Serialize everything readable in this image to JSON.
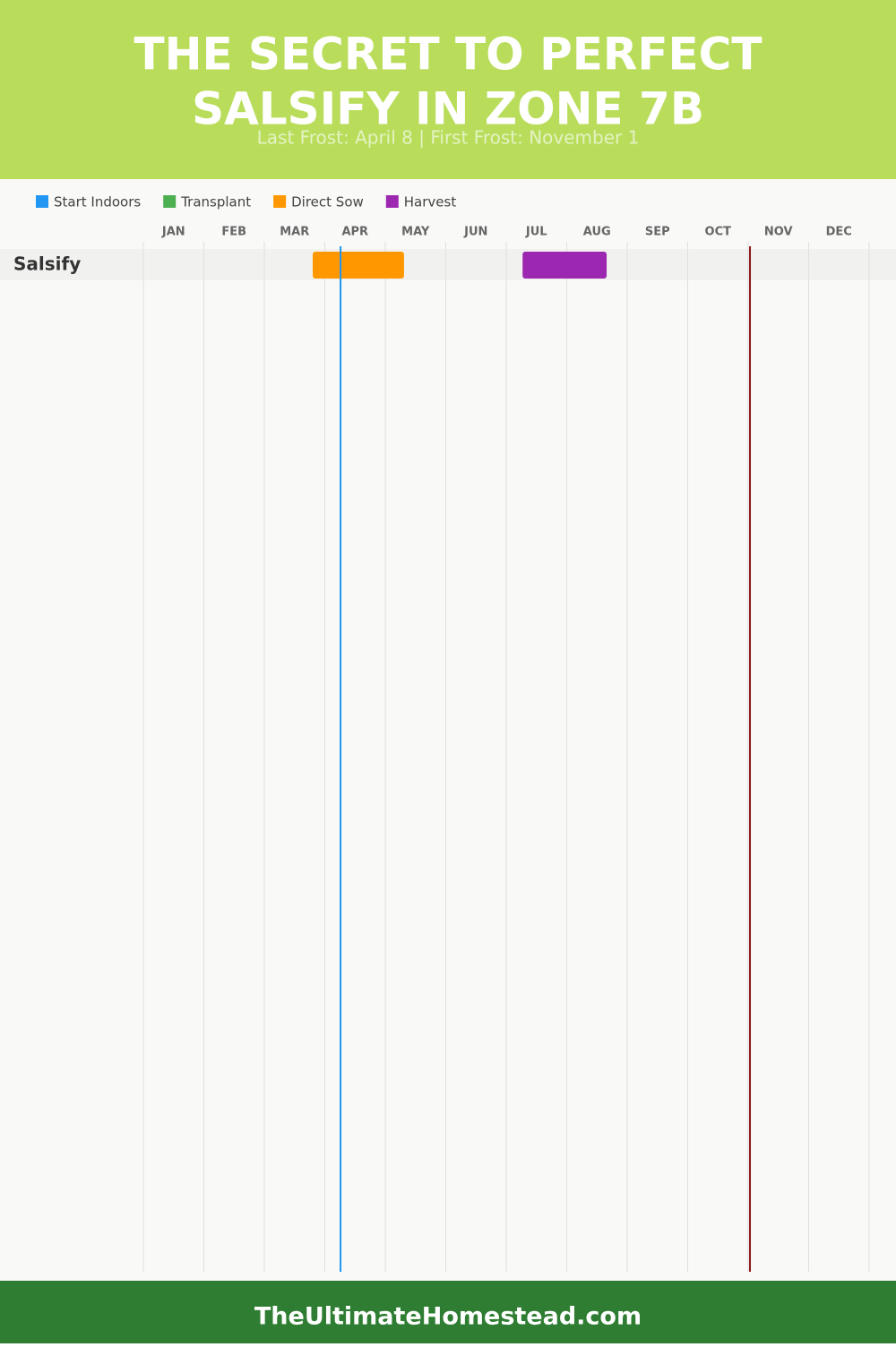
{
  "chart_data": {
    "type": "gantt",
    "title": [
      "THE SECRET TO PERFECT",
      "SALSIFY IN ZONE 7B"
    ],
    "subtitle": "Last Frost: April 8 | First Frost: November 1",
    "months": [
      "JAN",
      "FEB",
      "MAR",
      "APR",
      "MAY",
      "JUN",
      "JUL",
      "AUG",
      "SEP",
      "OCT",
      "NOV",
      "DEC"
    ],
    "xlim": [
      0,
      12
    ],
    "xticks": [
      0,
      1,
      2,
      3,
      4,
      5,
      6,
      7,
      8,
      9,
      10,
      11,
      12
    ],
    "grid": true,
    "rows": [
      "Salsify"
    ],
    "series": [
      {
        "name": "Start Indoors",
        "color": "#2196f3",
        "start": [
          null
        ],
        "end": [
          null
        ]
      },
      {
        "name": "Transplant",
        "color": "#4caf50",
        "start": [
          null
        ],
        "end": [
          null
        ]
      },
      {
        "name": "Direct Sow",
        "color": "#ff9800",
        "start": [
          2.8
        ],
        "end": [
          4.31
        ]
      },
      {
        "name": "Harvest",
        "color": "#9c27b0",
        "start": [
          6.27
        ],
        "end": [
          7.66
        ]
      }
    ],
    "markers": [
      {
        "value": 3.26,
        "color": "#2196f3"
      },
      {
        "value": 10.03,
        "color": "#8b1a1a"
      }
    ],
    "footer": "TheUltimateHomestead.com"
  }
}
